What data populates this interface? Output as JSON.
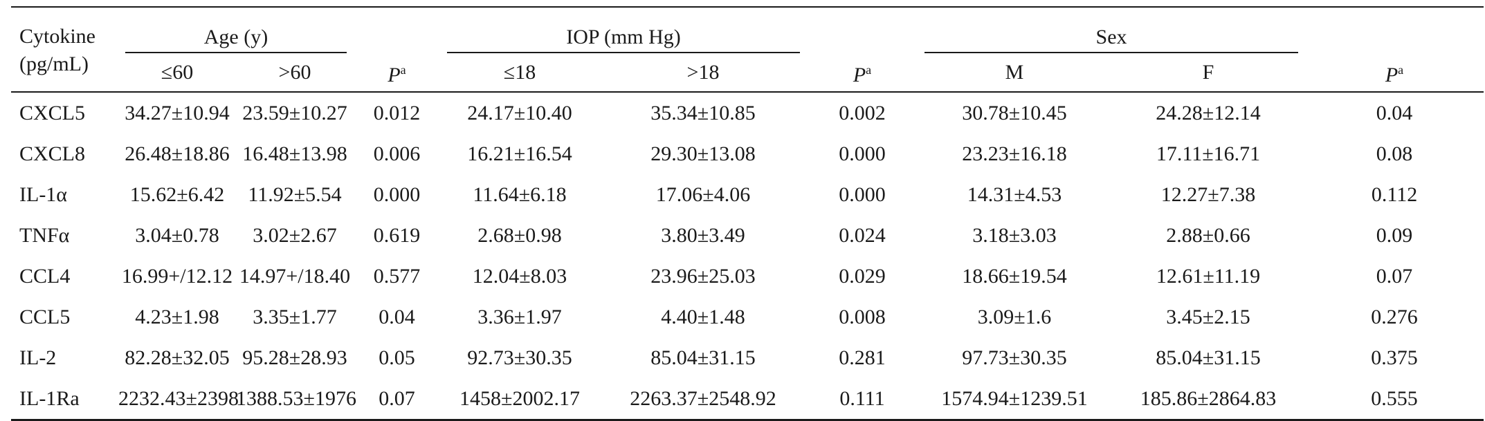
{
  "header": {
    "cytokine_line1": "Cytokine",
    "cytokine_line2": "(pg/mL)",
    "groups": [
      {
        "label": "Age (y)",
        "sub": [
          "≤60",
          ">60"
        ]
      },
      {
        "label": "IOP (mm Hg)",
        "sub": [
          "≤18",
          ">18"
        ]
      },
      {
        "label": "Sex",
        "sub": [
          "M",
          "F"
        ]
      }
    ],
    "p_label": "P",
    "p_sup": "a"
  },
  "rows": [
    {
      "name": "CXCL5",
      "c": [
        "34.27±10.94",
        "23.59±10.27",
        "0.012",
        "24.17±10.40",
        "35.34±10.85",
        "0.002",
        "30.78±10.45",
        "24.28±12.14",
        "0.04"
      ]
    },
    {
      "name": "CXCL8",
      "c": [
        "26.48±18.86",
        "16.48±13.98",
        "0.006",
        "16.21±16.54",
        "29.30±13.08",
        "0.000",
        "23.23±16.18",
        "17.11±16.71",
        "0.08"
      ]
    },
    {
      "name": "IL-1α",
      "c": [
        "15.62±6.42",
        "11.92±5.54",
        "0.000",
        "11.64±6.18",
        "17.06±4.06",
        "0.000",
        "14.31±4.53",
        "12.27±7.38",
        "0.112"
      ]
    },
    {
      "name": "TNFα",
      "c": [
        "3.04±0.78",
        "3.02±2.67",
        "0.619",
        "2.68±0.98",
        "3.80±3.49",
        "0.024",
        "3.18±3.03",
        "2.88±0.66",
        "0.09"
      ]
    },
    {
      "name": "CCL4",
      "c": [
        "16.99+/12.12",
        "14.97+/18.40",
        "0.577",
        "12.04±8.03",
        "23.96±25.03",
        "0.029",
        "18.66±19.54",
        "12.61±11.19",
        "0.07"
      ]
    },
    {
      "name": "CCL5",
      "c": [
        "4.23±1.98",
        "3.35±1.77",
        "0.04",
        "3.36±1.97",
        "4.40±1.48",
        "0.008",
        "3.09±1.6",
        "3.45±2.15",
        "0.276"
      ]
    },
    {
      "name": "IL-2",
      "c": [
        "82.28±32.05",
        "95.28±28.93",
        "0.05",
        "92.73±30.35",
        "85.04±31.15",
        "0.281",
        "97.73±30.35",
        "85.04±31.15",
        "0.375"
      ]
    },
    {
      "name": "IL-1Ra",
      "c": [
        "2232.43±2398",
        "1388.53±1976",
        "0.07",
        "1458±2002.17",
        "2263.37±2548.92",
        "0.111",
        "1574.94±1239.51",
        "185.86±2864.83",
        "0.555"
      ]
    }
  ]
}
